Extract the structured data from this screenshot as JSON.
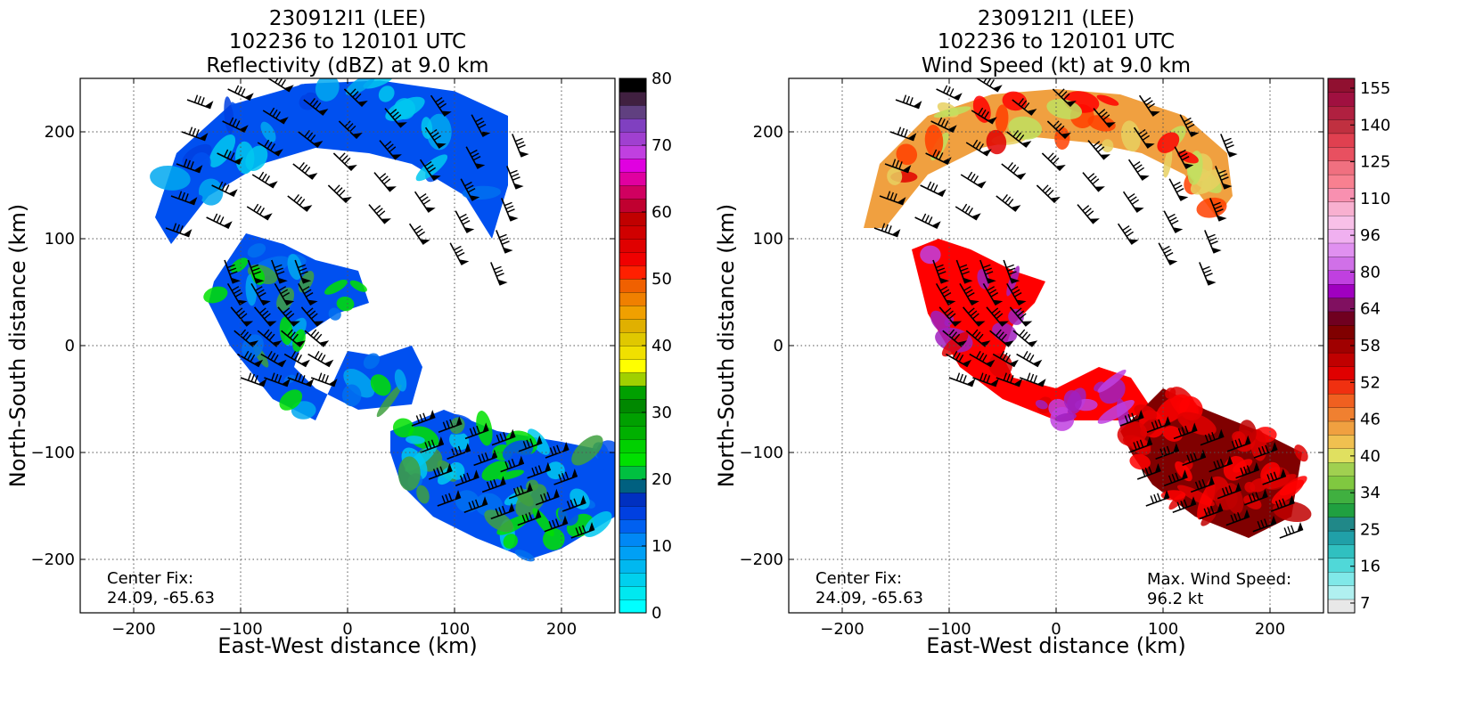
{
  "chart_data": [
    {
      "type": "heatmap",
      "title": [
        "230912I1 (LEE)",
        "102236 to 120101 UTC",
        "Reflectivity (dBZ) at 9.0 km"
      ],
      "xlabel": "East-West distance (km)",
      "ylabel": "North-South distance (km)",
      "xlim": [
        -250,
        250
      ],
      "ylim": [
        -250,
        250
      ],
      "xticks": [
        -200,
        -100,
        0,
        100,
        200
      ],
      "yticks": [
        -200,
        -100,
        0,
        100,
        200
      ],
      "xtick_labels": [
        "−200",
        "−100",
        "0",
        "100",
        "200"
      ],
      "ytick_labels": [
        "−200",
        "−100",
        "0",
        "100",
        "200"
      ],
      "grid": true,
      "annotations": {
        "center_fix_label": "Center Fix:",
        "center_fix_value": "24.09, -65.63"
      },
      "colorbar": {
        "tick_labels": [
          "0",
          "10",
          "20",
          "30",
          "40",
          "50",
          "60",
          "70",
          "80"
        ],
        "colors": [
          "#00ffff",
          "#00e8f0",
          "#00d0ee",
          "#00b8f0",
          "#00a0f5",
          "#0088f5",
          "#0060f0",
          "#0040e0",
          "#0030c0",
          "#006080",
          "#00c040",
          "#00e000",
          "#00d000",
          "#00b000",
          "#00a000",
          "#008800",
          "#00a000",
          "#a0d000",
          "#ffff00",
          "#f0e000",
          "#e0c800",
          "#e0b000",
          "#f0a000",
          "#f08000",
          "#f06000",
          "#ff2000",
          "#f00000",
          "#e00000",
          "#d00000",
          "#c00000",
          "#c00030",
          "#d00060",
          "#e000a0",
          "#e000e0",
          "#c040e0",
          "#a040d0",
          "#8040c0",
          "#604080",
          "#402040",
          "#000000"
        ]
      },
      "wind_speed_kt": {
        "field_colors": [
          "#0050f0",
          "#0070f0",
          "#00a8f0",
          "#00c8f0",
          "#00e000",
          "#40a040",
          "#0040e0"
        ]
      }
    },
    {
      "type": "heatmap",
      "title": [
        "230912I1 (LEE)",
        "102236 to 120101 UTC",
        "Wind Speed (kt) at 9.0 km"
      ],
      "xlabel": "East-West distance (km)",
      "ylabel": "North-South distance (km)",
      "xlim": [
        -250,
        250
      ],
      "ylim": [
        -250,
        250
      ],
      "xticks": [
        -200,
        -100,
        0,
        100,
        200
      ],
      "yticks": [
        -200,
        -100,
        0,
        100,
        200
      ],
      "xtick_labels": [
        "−200",
        "−100",
        "0",
        "100",
        "200"
      ],
      "ytick_labels": [
        "−200",
        "−100",
        "0",
        "100",
        "200"
      ],
      "grid": true,
      "annotations": {
        "center_fix_label": "Center Fix:",
        "center_fix_value": "24.09, -65.63",
        "max_wind_label": "Max. Wind Speed:",
        "max_wind_value": "96.2 kt"
      },
      "max_wind_speed_kt": 96.2,
      "colorbar": {
        "tick_labels": [
          "7",
          "16",
          "25",
          "34",
          "40",
          "46",
          "52",
          "58",
          "64",
          "80",
          "96",
          "110",
          "125",
          "140",
          "155"
        ],
        "colors": [
          "#e8e8e8",
          "#b0f0f0",
          "#80e8e8",
          "#50d8d8",
          "#30c0c0",
          "#20a0a8",
          "#208888",
          "#20a040",
          "#40b040",
          "#80c840",
          "#a0d050",
          "#e0e060",
          "#f0c050",
          "#f0a040",
          "#f08030",
          "#f06020",
          "#f03010",
          "#e00000",
          "#c00000",
          "#a00000",
          "#800000",
          "#700020",
          "#801060",
          "#a000c0",
          "#c040e0",
          "#d070e8",
          "#e090f0",
          "#f0b0f0",
          "#f8c0e8",
          "#f8b0d0",
          "#f890b0",
          "#f88090",
          "#f07080",
          "#e85060",
          "#e04050",
          "#c03040",
          "#b02040",
          "#a01040",
          "#901030"
        ]
      },
      "field_colors": [
        "#ff0000",
        "#e00000",
        "#c00000",
        "#ff4000",
        "#f87020",
        "#f0a040",
        "#e8d060",
        "#c0e060",
        "#80c040",
        "#a020c0",
        "#c040e0",
        "#800000"
      ]
    }
  ]
}
